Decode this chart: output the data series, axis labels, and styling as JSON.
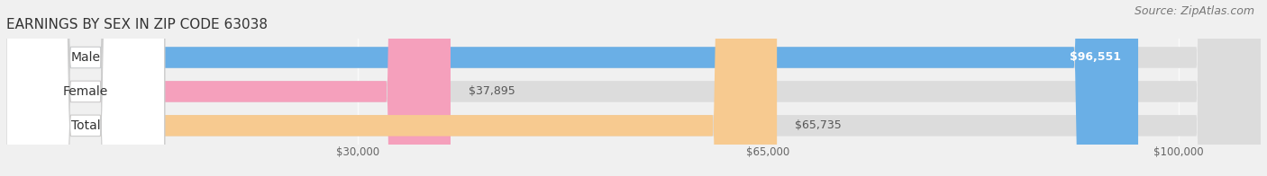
{
  "title": "EARNINGS BY SEX IN ZIP CODE 63038",
  "source": "Source: ZipAtlas.com",
  "categories": [
    "Male",
    "Female",
    "Total"
  ],
  "values": [
    96551,
    37895,
    65735
  ],
  "bar_colors": [
    "#6aafe6",
    "#f5a0bc",
    "#f7ca90"
  ],
  "value_labels": [
    "$96,551",
    "$37,895",
    "$65,735"
  ],
  "value_label_colors": [
    "white",
    "#666666",
    "#666666"
  ],
  "value_label_inside": [
    true,
    false,
    false
  ],
  "tick_labels": [
    "$30,000",
    "$65,000",
    "$100,000"
  ],
  "tick_values": [
    30000,
    65000,
    100000
  ],
  "xmin": 0,
  "xmax": 107000,
  "background_color": "#f0f0f0",
  "bar_bg_color": "#dcdcdc",
  "title_fontsize": 11,
  "source_fontsize": 9,
  "label_fontsize": 10,
  "value_fontsize": 9
}
